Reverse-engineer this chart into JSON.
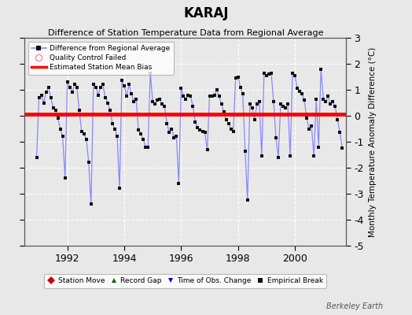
{
  "title": "KARAJ",
  "subtitle": "Difference of Station Temperature Data from Regional Average",
  "ylabel": "Monthly Temperature Anomaly Difference (°C)",
  "bias": 0.05,
  "xlim_start": 1990.5,
  "xlim_end": 2001.8,
  "ylim": [
    -5,
    3
  ],
  "yticks": [
    -5,
    -4,
    -3,
    -2,
    -1,
    0,
    1,
    2,
    3
  ],
  "xticks": [
    1992,
    1994,
    1996,
    1998,
    2000
  ],
  "bg_color": "#e8e8e8",
  "line_color": "#8888ff",
  "marker_color": "#111111",
  "bias_color": "#ff0000",
  "watermark": "Berkeley Earth",
  "monthly_data": [
    [
      1990.917,
      -1.6
    ],
    [
      1991.0,
      0.7
    ],
    [
      1991.083,
      0.8
    ],
    [
      1991.167,
      0.5
    ],
    [
      1991.25,
      0.9
    ],
    [
      1991.333,
      1.1
    ],
    [
      1991.417,
      0.7
    ],
    [
      1991.5,
      0.3
    ],
    [
      1991.583,
      0.2
    ],
    [
      1991.667,
      -0.1
    ],
    [
      1991.75,
      -0.5
    ],
    [
      1991.833,
      -0.8
    ],
    [
      1991.917,
      -2.4
    ],
    [
      1992.0,
      1.3
    ],
    [
      1992.083,
      1.1
    ],
    [
      1992.167,
      0.9
    ],
    [
      1992.25,
      1.2
    ],
    [
      1992.333,
      1.1
    ],
    [
      1992.417,
      0.2
    ],
    [
      1992.5,
      -0.6
    ],
    [
      1992.583,
      -0.7
    ],
    [
      1992.667,
      -0.9
    ],
    [
      1992.75,
      -1.8
    ],
    [
      1992.833,
      -3.4
    ],
    [
      1992.917,
      1.2
    ],
    [
      1993.0,
      1.1
    ],
    [
      1993.083,
      0.8
    ],
    [
      1993.167,
      1.1
    ],
    [
      1993.25,
      1.2
    ],
    [
      1993.333,
      0.7
    ],
    [
      1993.417,
      0.5
    ],
    [
      1993.5,
      0.2
    ],
    [
      1993.583,
      -0.3
    ],
    [
      1993.667,
      -0.5
    ],
    [
      1993.75,
      -0.8
    ],
    [
      1993.833,
      -2.8
    ],
    [
      1993.917,
      1.35
    ],
    [
      1994.0,
      1.15
    ],
    [
      1994.083,
      0.75
    ],
    [
      1994.167,
      1.2
    ],
    [
      1994.25,
      0.85
    ],
    [
      1994.333,
      0.55
    ],
    [
      1994.417,
      0.65
    ],
    [
      1994.5,
      -0.55
    ],
    [
      1994.583,
      -0.7
    ],
    [
      1994.667,
      -0.9
    ],
    [
      1994.75,
      -1.2
    ],
    [
      1994.833,
      -1.2
    ],
    [
      1994.917,
      1.65
    ],
    [
      1995.0,
      0.55
    ],
    [
      1995.083,
      0.45
    ],
    [
      1995.167,
      0.6
    ],
    [
      1995.25,
      0.65
    ],
    [
      1995.333,
      0.45
    ],
    [
      1995.417,
      0.35
    ],
    [
      1995.5,
      -0.3
    ],
    [
      1995.583,
      -0.65
    ],
    [
      1995.667,
      -0.5
    ],
    [
      1995.75,
      -0.85
    ],
    [
      1995.833,
      -0.8
    ],
    [
      1995.917,
      -2.6
    ],
    [
      1996.0,
      1.05
    ],
    [
      1996.083,
      0.75
    ],
    [
      1996.167,
      0.65
    ],
    [
      1996.25,
      0.8
    ],
    [
      1996.333,
      0.75
    ],
    [
      1996.417,
      0.35
    ],
    [
      1996.5,
      -0.25
    ],
    [
      1996.583,
      -0.45
    ],
    [
      1996.667,
      -0.55
    ],
    [
      1996.75,
      -0.6
    ],
    [
      1996.833,
      -0.65
    ],
    [
      1996.917,
      -1.3
    ],
    [
      1997.0,
      0.75
    ],
    [
      1997.083,
      0.75
    ],
    [
      1997.167,
      0.8
    ],
    [
      1997.25,
      1.0
    ],
    [
      1997.333,
      0.75
    ],
    [
      1997.417,
      0.45
    ],
    [
      1997.5,
      0.15
    ],
    [
      1997.583,
      -0.15
    ],
    [
      1997.667,
      -0.3
    ],
    [
      1997.75,
      -0.5
    ],
    [
      1997.833,
      -0.6
    ],
    [
      1997.917,
      1.45
    ],
    [
      1998.0,
      1.5
    ],
    [
      1998.083,
      1.1
    ],
    [
      1998.167,
      0.85
    ],
    [
      1998.25,
      -1.35
    ],
    [
      1998.333,
      -3.25
    ],
    [
      1998.417,
      0.45
    ],
    [
      1998.5,
      0.3
    ],
    [
      1998.583,
      -0.15
    ],
    [
      1998.667,
      0.45
    ],
    [
      1998.75,
      0.55
    ],
    [
      1998.833,
      -1.55
    ],
    [
      1998.917,
      1.65
    ],
    [
      1999.0,
      1.55
    ],
    [
      1999.083,
      1.6
    ],
    [
      1999.167,
      1.65
    ],
    [
      1999.25,
      0.55
    ],
    [
      1999.333,
      -0.85
    ],
    [
      1999.417,
      -1.6
    ],
    [
      1999.5,
      0.45
    ],
    [
      1999.583,
      0.35
    ],
    [
      1999.667,
      0.3
    ],
    [
      1999.75,
      0.45
    ],
    [
      1999.833,
      -1.55
    ],
    [
      1999.917,
      1.65
    ],
    [
      2000.0,
      1.55
    ],
    [
      2000.083,
      1.05
    ],
    [
      2000.167,
      0.95
    ],
    [
      2000.25,
      0.85
    ],
    [
      2000.333,
      0.6
    ],
    [
      2000.417,
      -0.1
    ],
    [
      2000.5,
      -0.5
    ],
    [
      2000.583,
      -0.4
    ],
    [
      2000.667,
      -1.55
    ],
    [
      2000.75,
      0.65
    ],
    [
      2000.833,
      -1.2
    ],
    [
      2000.917,
      1.8
    ],
    [
      2001.0,
      0.65
    ],
    [
      2001.083,
      0.55
    ],
    [
      2001.167,
      0.75
    ],
    [
      2001.25,
      0.45
    ],
    [
      2001.333,
      0.55
    ],
    [
      2001.417,
      0.35
    ],
    [
      2001.5,
      -0.15
    ],
    [
      2001.583,
      -0.65
    ],
    [
      2001.667,
      -1.25
    ]
  ]
}
